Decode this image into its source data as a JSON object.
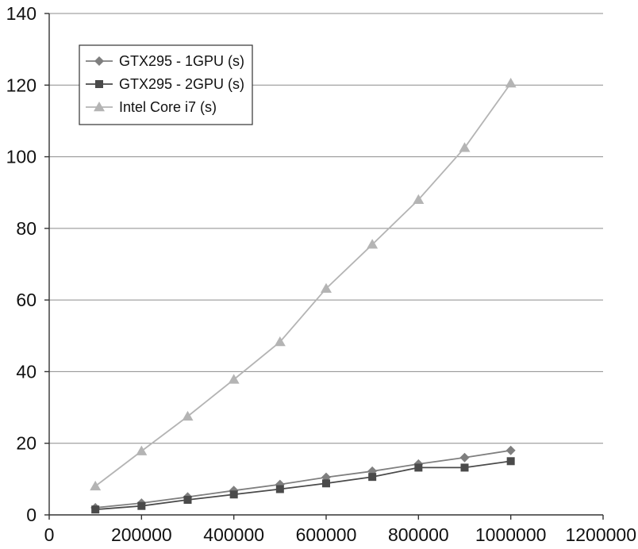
{
  "chart_data": {
    "type": "line",
    "title": "",
    "xlabel": "",
    "ylabel": "",
    "xlim": [
      0,
      1200000
    ],
    "ylim": [
      0,
      140
    ],
    "x_ticks": [
      0,
      200000,
      400000,
      600000,
      800000,
      1000000,
      1200000
    ],
    "x_tick_labels": [
      "0",
      "200000",
      "400000",
      "600000",
      "800000",
      "1000000",
      "1200000"
    ],
    "y_ticks": [
      0,
      20,
      40,
      60,
      80,
      100,
      120,
      140
    ],
    "y_tick_labels": [
      "0",
      "20",
      "40",
      "60",
      "80",
      "100",
      "120",
      "140"
    ],
    "grid": "horizontal",
    "legend_position": "top-left",
    "x": [
      100000,
      200000,
      300000,
      400000,
      500000,
      600000,
      700000,
      800000,
      900000,
      1000000
    ],
    "series": [
      {
        "name": "GTX295 - 1GPU (s)",
        "marker": "diamond",
        "color": "#7f7f7f",
        "values": [
          2.0,
          3.3,
          5.0,
          6.8,
          8.5,
          10.5,
          12.2,
          14.2,
          16.0,
          18.0
        ]
      },
      {
        "name": "GTX295 - 2GPU (s)",
        "marker": "square",
        "color": "#4a4a4a",
        "values": [
          1.5,
          2.5,
          4.2,
          5.7,
          7.2,
          8.8,
          10.6,
          13.2,
          13.2,
          15.0
        ]
      },
      {
        "name": "Intel Core i7 (s)",
        "marker": "triangle",
        "color": "#b4b4b4",
        "values": [
          8.0,
          17.8,
          27.5,
          37.8,
          48.3,
          63.2,
          75.5,
          88.0,
          102.5,
          120.5
        ]
      }
    ]
  }
}
